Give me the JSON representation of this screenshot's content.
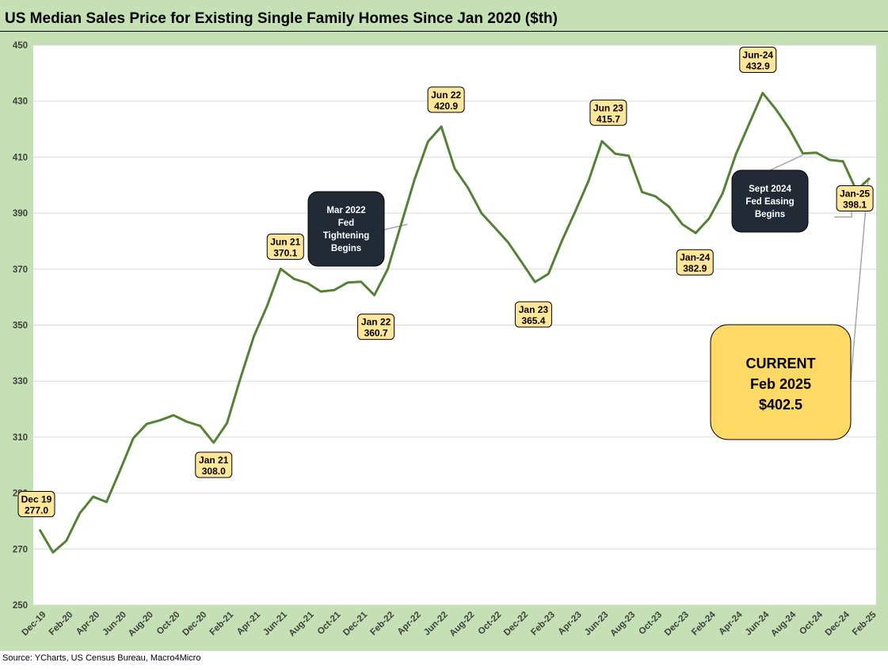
{
  "title": "US Median Sales Price for Existing Single Family Homes Since Jan 2020 ($th)",
  "source": "Source: YCharts, US Census Bureau, Macro4Micro",
  "colors": {
    "line": "#548235",
    "background": "#c5e0b4",
    "plot_bg": "#ffffff",
    "label_fill": "#ffe699",
    "note_fill": "#222a35",
    "current_fill": "#ffd966",
    "leader": "#a6a6a6"
  },
  "chart_data": {
    "type": "line",
    "title": "US Median Sales Price for Existing Single Family Homes Since Jan 2020 ($th)",
    "ylabel": "",
    "xlabel": "",
    "ylim": [
      250,
      450
    ],
    "yticks": [
      250,
      270,
      290,
      310,
      330,
      350,
      370,
      390,
      410,
      430,
      450
    ],
    "grid": true,
    "x_labels": [
      "Dec-19",
      "Feb-20",
      "Apr-20",
      "Jun-20",
      "Aug-20",
      "Oct-20",
      "Dec-20",
      "Feb-21",
      "Apr-21",
      "Jun-21",
      "Aug-21",
      "Oct-21",
      "Dec-21",
      "Feb-22",
      "Apr-22",
      "Jun-22",
      "Aug-22",
      "Oct-22",
      "Dec-22",
      "Feb-23",
      "Apr-23",
      "Jun-23",
      "Aug-23",
      "Oct-23",
      "Dec-23",
      "Feb-24",
      "Apr-24",
      "Jun-24",
      "Aug-24",
      "Oct-24",
      "Dec-24",
      "Feb-25"
    ],
    "series": [
      {
        "name": "Median Sales Price ($th)",
        "values": [
          277.0,
          268.8,
          273.0,
          282.8,
          288.7,
          286.8,
          298.0,
          309.6,
          314.7,
          316.0,
          317.8,
          315.5,
          314.0,
          308.0,
          315.0,
          331.0,
          346.0,
          357.0,
          370.1,
          366.5,
          365.0,
          362.0,
          362.5,
          365.2,
          365.5,
          360.7,
          370.0,
          386.0,
          402.0,
          415.5,
          420.9,
          405.9,
          399.0,
          390.0,
          384.8,
          379.5,
          372.5,
          365.4,
          368.3,
          380.0,
          390.5,
          401.5,
          415.7,
          411.2,
          410.5,
          397.5,
          396.0,
          392.3,
          386.0,
          382.9,
          388.1,
          397.0,
          411.0,
          422.0,
          432.9,
          427.0,
          420.0,
          411.3,
          411.6,
          409.0,
          408.5,
          398.1,
          402.5
        ]
      }
    ],
    "point_labels": [
      {
        "index": 0,
        "line1": "Dec 19",
        "line2": "277.0"
      },
      {
        "index": 13,
        "line1": "Jan 21",
        "line2": "308.0"
      },
      {
        "index": 18,
        "line1": "Jun 21",
        "line2": "370.1"
      },
      {
        "index": 25,
        "line1": "Jan 22",
        "line2": "360.7"
      },
      {
        "index": 30,
        "line1": "Jun 22",
        "line2": "420.9"
      },
      {
        "index": 37,
        "line1": "Jan 23",
        "line2": "365.4"
      },
      {
        "index": 42,
        "line1": "Jun 23",
        "line2": "415.7"
      },
      {
        "index": 49,
        "line1": "Jan-24",
        "line2": "382.9"
      },
      {
        "index": 54,
        "line1": "Jun-24",
        "line2": "432.9"
      },
      {
        "index": 61,
        "line1": "Jan-25",
        "line2": "398.1"
      }
    ],
    "annotations": [
      {
        "index": 27,
        "lines": [
          "Mar 2022",
          "Fed",
          "Tightening",
          "Begins"
        ]
      },
      {
        "index": 57,
        "lines": [
          "Sept 2024",
          "Fed Easing",
          "Begins"
        ]
      }
    ],
    "current": {
      "index": 62,
      "lines": [
        "CURRENT",
        "Feb 2025",
        "$402.5"
      ]
    }
  }
}
